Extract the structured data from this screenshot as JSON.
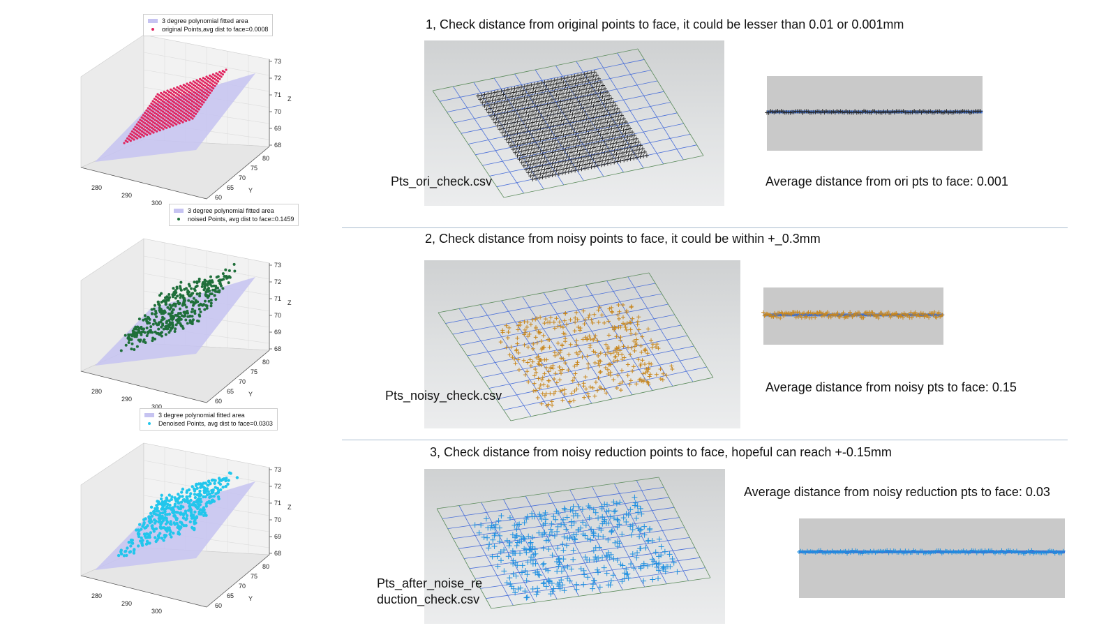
{
  "plots": [
    {
      "legend_surface": "3 degree polynomial fitted area",
      "legend_points": "original Points,avg dist to face=0.0008",
      "point_color": "#e0245e",
      "z_ticks": [
        "73",
        "72",
        "71",
        "70",
        "69",
        "68"
      ],
      "y_ticks": [
        "80",
        "75",
        "70",
        "65",
        "60"
      ],
      "x_ticks": [
        "280",
        "290",
        "300"
      ],
      "z_label": "Z",
      "y_label": "Y"
    },
    {
      "legend_surface": "3 degree polynomial fitted area",
      "legend_points": "noised Points, avg dist to face=0.1459",
      "point_color": "#1f6f3a",
      "z_ticks": [
        "73",
        "72",
        "71",
        "70",
        "69",
        "68"
      ],
      "y_ticks": [
        "80",
        "75",
        "70",
        "65",
        "60"
      ],
      "x_ticks": [
        "280",
        "290",
        "300"
      ],
      "z_label": "Z",
      "y_label": "Y"
    },
    {
      "legend_surface": "3 degree polynomial fitted area",
      "legend_points": "Denoised Points, avg dist to face=0.0303",
      "point_color": "#22c6ec",
      "z_ticks": [
        "73",
        "72",
        "71",
        "70",
        "69",
        "68"
      ],
      "y_ticks": [
        "80",
        "75",
        "70",
        "65",
        "60"
      ],
      "x_ticks": [
        "280",
        "290",
        "300"
      ],
      "z_label": "Z",
      "y_label": "Y"
    }
  ],
  "sections": [
    {
      "heading": "1, Check distance from original points to face, it could be lesser than 0.01 or 0.001mm",
      "file_label": "Pts_ori_check.csv",
      "avg_text": "Average distance from ori pts to face: 0.001",
      "marker_color": "#2b2b2b"
    },
    {
      "heading": "2, Check distance from noisy points to face, it could be within +_0.3mm",
      "file_label": "Pts_noisy_check.csv",
      "avg_text": "Average distance from noisy pts to face: 0.15",
      "marker_color": "#c8861c"
    },
    {
      "heading": "3, Check distance from noisy reduction points to face, hopeful can reach +-0.15mm",
      "file_label": "Pts_after_noise_re duction_check.csv",
      "avg_text": "Average distance from noisy reduction pts to face: 0.03",
      "marker_color": "#1e8fe0"
    }
  ],
  "colors": {
    "surface": "#c6c3f1",
    "divider": "#a9bccf",
    "grid_blue": "#4a6fd8",
    "grid_green": "#5a8a5a"
  }
}
